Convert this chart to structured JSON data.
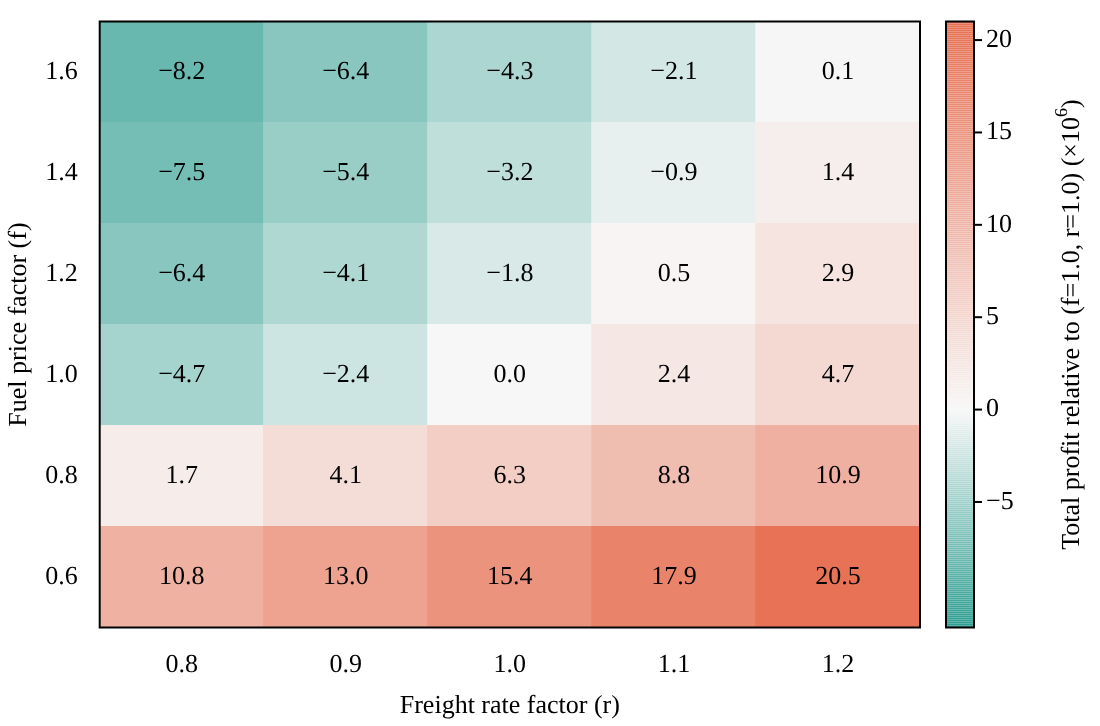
{
  "chart_data": {
    "type": "heatmap",
    "xlabel": "Freight rate factor (r)",
    "ylabel": "Fuel price factor (f)",
    "clabel": "Total profit relative to (f=1.0, r=1.0) (×10$^{6}$)",
    "categories": [
      "0.8",
      "0.9",
      "1.0",
      "1.1",
      "1.2"
    ],
    "y_categories": [
      "1.6",
      "1.4",
      "1.2",
      "1.0",
      "0.8",
      "0.6"
    ],
    "cells": [
      [
        -8.2,
        -6.4,
        -4.3,
        -2.1,
        0.1
      ],
      [
        -7.5,
        -5.4,
        -3.2,
        -0.9,
        1.4
      ],
      [
        -6.4,
        -4.1,
        -1.8,
        0.5,
        2.9
      ],
      [
        -4.7,
        -2.4,
        0.0,
        2.4,
        4.7
      ],
      [
        1.7,
        4.1,
        6.3,
        8.8,
        10.9
      ],
      [
        10.8,
        13.0,
        15.4,
        17.9,
        20.5
      ]
    ],
    "cell_labels": [
      [
        "−8.2",
        "−6.4",
        "−4.3",
        "−2.1",
        "0.1"
      ],
      [
        "−7.5",
        "−5.4",
        "−3.2",
        "−0.9",
        "1.4"
      ],
      [
        "−6.4",
        "−4.1",
        "−1.8",
        "0.5",
        "2.9"
      ],
      [
        "−4.7",
        "−2.4",
        "0.0",
        "2.4",
        "4.7"
      ],
      [
        "1.7",
        "4.1",
        "6.3",
        "8.8",
        "10.9"
      ],
      [
        "10.8",
        "13.0",
        "15.4",
        "17.9",
        "20.5"
      ]
    ],
    "clim": [
      -11.8,
      21
    ],
    "cticks": [
      {
        "value": -5,
        "label": "−5"
      },
      0,
      5,
      10,
      15,
      20
    ]
  }
}
